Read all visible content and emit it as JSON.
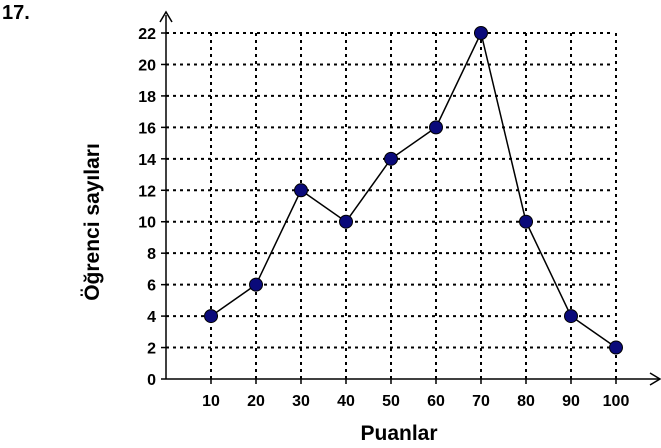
{
  "question_number": "17.",
  "chart_data": {
    "type": "line",
    "xlabel": "Puanlar",
    "ylabel": "Öğrenci sayıları",
    "x": [
      10,
      20,
      30,
      40,
      50,
      60,
      70,
      80,
      90,
      100
    ],
    "y": [
      4,
      6,
      12,
      10,
      14,
      16,
      22,
      10,
      4,
      2
    ],
    "xticks": [
      "10",
      "20",
      "30",
      "40",
      "50",
      "60",
      "70",
      "80",
      "90",
      "100"
    ],
    "yticks": [
      "0",
      "2",
      "4",
      "6",
      "8",
      "10",
      "12",
      "14",
      "16",
      "18",
      "20",
      "22"
    ],
    "xlim": [
      0,
      100
    ],
    "ylim": [
      0,
      22
    ],
    "grid": true,
    "grid_style": "dotted",
    "marker_color": "#0a0a7a",
    "line_color": "#000000"
  }
}
